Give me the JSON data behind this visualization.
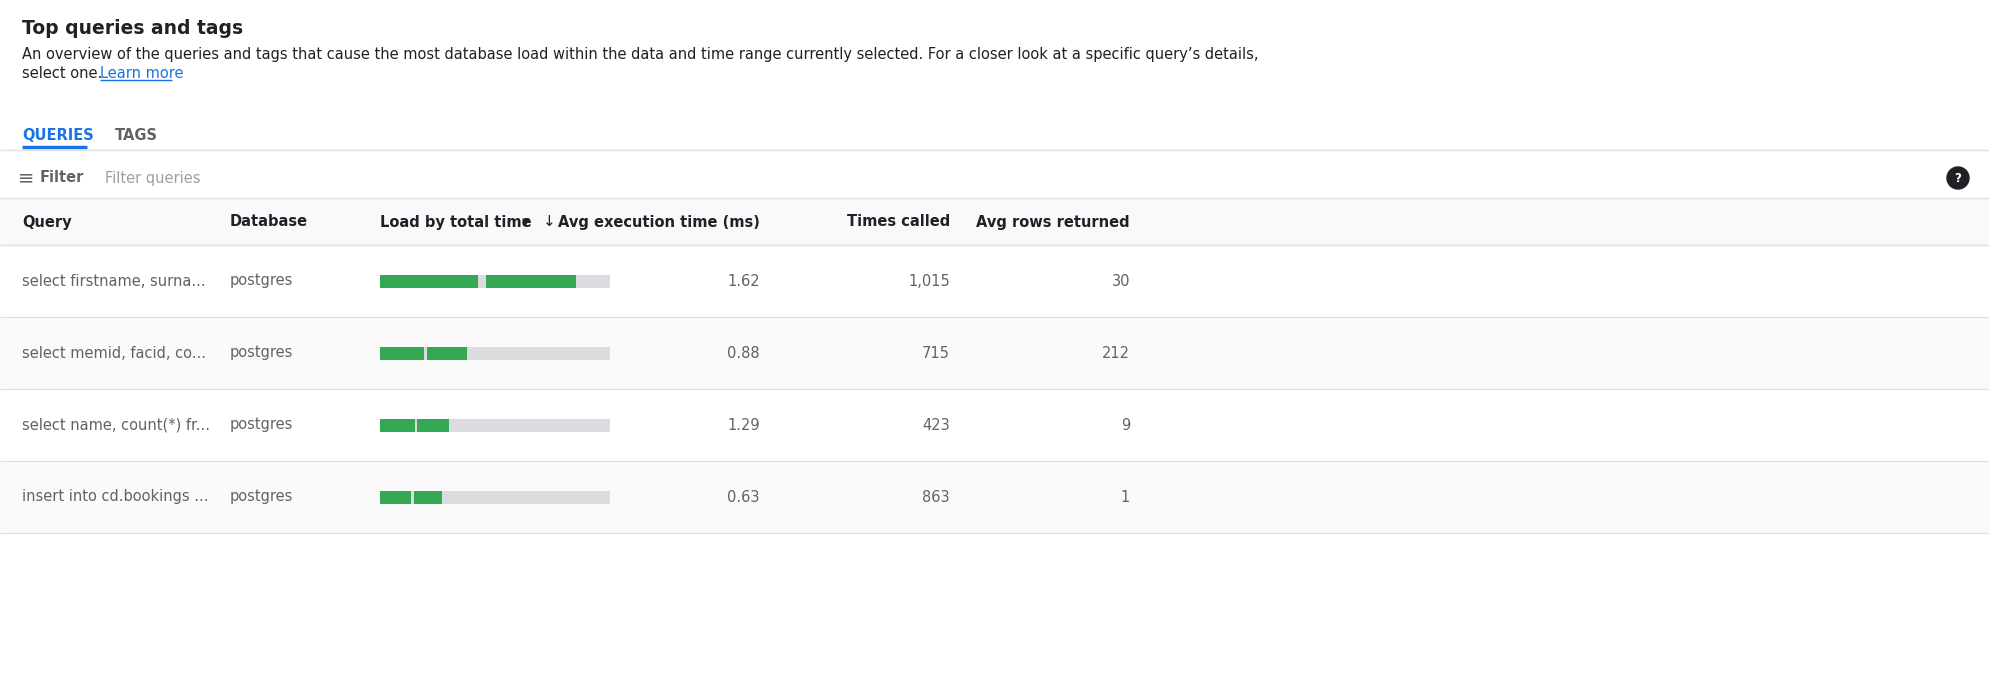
{
  "title": "Top queries and tags",
  "subtitle_line1": "An overview of the queries and tags that cause the most database load within the data and time range currently selected. For a closer look at a specific query’s details,",
  "subtitle_line2": "select one.",
  "learn_more_text": "Learn more",
  "tab_queries": "QUERIES",
  "tab_tags": "TAGS",
  "filter_label": "Filter",
  "filter_placeholder": "Filter queries",
  "rows": [
    {
      "query": "select firstname, surna...",
      "database": "postgres",
      "load_green": 0.85,
      "avg_exec": "1.62",
      "times_called": "1,015",
      "avg_rows": "30"
    },
    {
      "query": "select memid, facid, co...",
      "database": "postgres",
      "load_green": 0.38,
      "avg_exec": "0.88",
      "times_called": "715",
      "avg_rows": "212"
    },
    {
      "query": "select name, count(*) fr...",
      "database": "postgres",
      "load_green": 0.3,
      "avg_exec": "1.29",
      "times_called": "423",
      "avg_rows": "9"
    },
    {
      "query": "insert into cd.bookings ...",
      "database": "postgres",
      "load_green": 0.27,
      "avg_exec": "0.63",
      "times_called": "863",
      "avg_rows": "1"
    }
  ],
  "background_color": "#ffffff",
  "header_bg": "#f8f9fa",
  "divider_color": "#e0e0e0",
  "text_dark": "#202124",
  "text_mid": "#5f6368",
  "text_light": "#9aa0a6",
  "green_color": "#34a853",
  "gray_bar_color": "#dadce0",
  "blue_color": "#1a73e8",
  "link_color": "#1a73e8"
}
